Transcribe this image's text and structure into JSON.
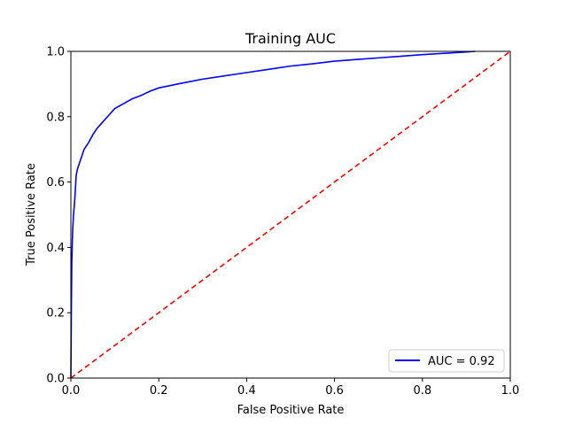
{
  "chart_data": {
    "type": "line",
    "title": "Training AUC",
    "xlabel": "False Positive Rate",
    "ylabel": "True Positive Rate",
    "xlim": [
      0.0,
      1.0
    ],
    "ylim": [
      0.0,
      1.0
    ],
    "xticks": [
      "0.0",
      "0.2",
      "0.4",
      "0.6",
      "0.8",
      "1.0"
    ],
    "yticks": [
      "0.0",
      "0.2",
      "0.4",
      "0.6",
      "0.8",
      "1.0"
    ],
    "grid": false,
    "legend_position": "lower-right",
    "series": [
      {
        "name": "AUC = 0.92",
        "color": "#0000ff",
        "style": "solid",
        "x": [
          0.0,
          0.001,
          0.002,
          0.004,
          0.006,
          0.008,
          0.01,
          0.012,
          0.015,
          0.02,
          0.025,
          0.03,
          0.04,
          0.05,
          0.06,
          0.07,
          0.08,
          0.09,
          0.1,
          0.12,
          0.14,
          0.16,
          0.18,
          0.2,
          0.25,
          0.3,
          0.35,
          0.4,
          0.45,
          0.5,
          0.55,
          0.6,
          0.65,
          0.7,
          0.75,
          0.8,
          0.85,
          0.9,
          0.92
        ],
        "y": [
          0.0,
          0.2,
          0.35,
          0.45,
          0.5,
          0.53,
          0.57,
          0.62,
          0.64,
          0.66,
          0.68,
          0.7,
          0.72,
          0.745,
          0.765,
          0.78,
          0.795,
          0.81,
          0.825,
          0.84,
          0.855,
          0.865,
          0.878,
          0.888,
          0.902,
          0.915,
          0.925,
          0.935,
          0.945,
          0.955,
          0.962,
          0.97,
          0.975,
          0.98,
          0.985,
          0.99,
          0.994,
          0.998,
          1.0
        ]
      },
      {
        "name": "",
        "color": "#ff0000",
        "style": "dashed",
        "x": [
          0.0,
          1.0
        ],
        "y": [
          0.0,
          1.0
        ]
      }
    ]
  }
}
